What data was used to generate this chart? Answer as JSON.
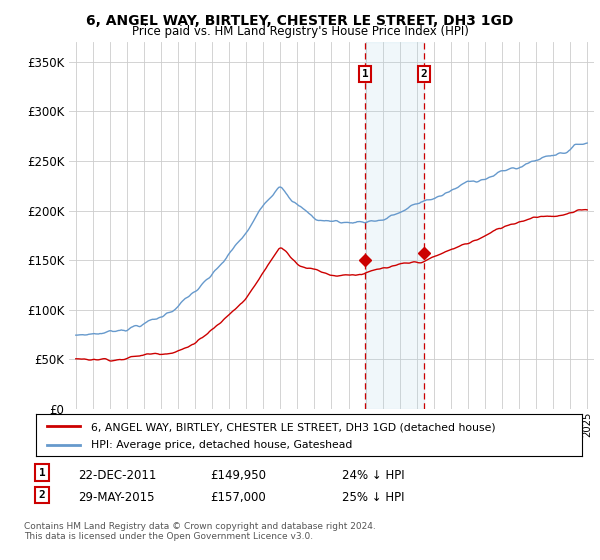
{
  "title": "6, ANGEL WAY, BIRTLEY, CHESTER LE STREET, DH3 1GD",
  "subtitle": "Price paid vs. HM Land Registry's House Price Index (HPI)",
  "hpi_color": "#6699cc",
  "price_color": "#cc0000",
  "transaction1_date": "22-DEC-2011",
  "transaction1_price": 149950,
  "transaction1_discount": "24% ↓ HPI",
  "transaction2_date": "29-MAY-2015",
  "transaction2_price": 157000,
  "transaction2_discount": "25% ↓ HPI",
  "legend_label1": "6, ANGEL WAY, BIRTLEY, CHESTER LE STREET, DH3 1GD (detached house)",
  "legend_label2": "HPI: Average price, detached house, Gateshead",
  "footnote": "Contains HM Land Registry data © Crown copyright and database right 2024.\nThis data is licensed under the Open Government Licence v3.0.",
  "ylim": [
    0,
    370000
  ],
  "yticks": [
    0,
    50000,
    100000,
    150000,
    200000,
    250000,
    300000,
    350000
  ],
  "background_color": "#ffffff",
  "plot_bg_color": "#ffffff"
}
